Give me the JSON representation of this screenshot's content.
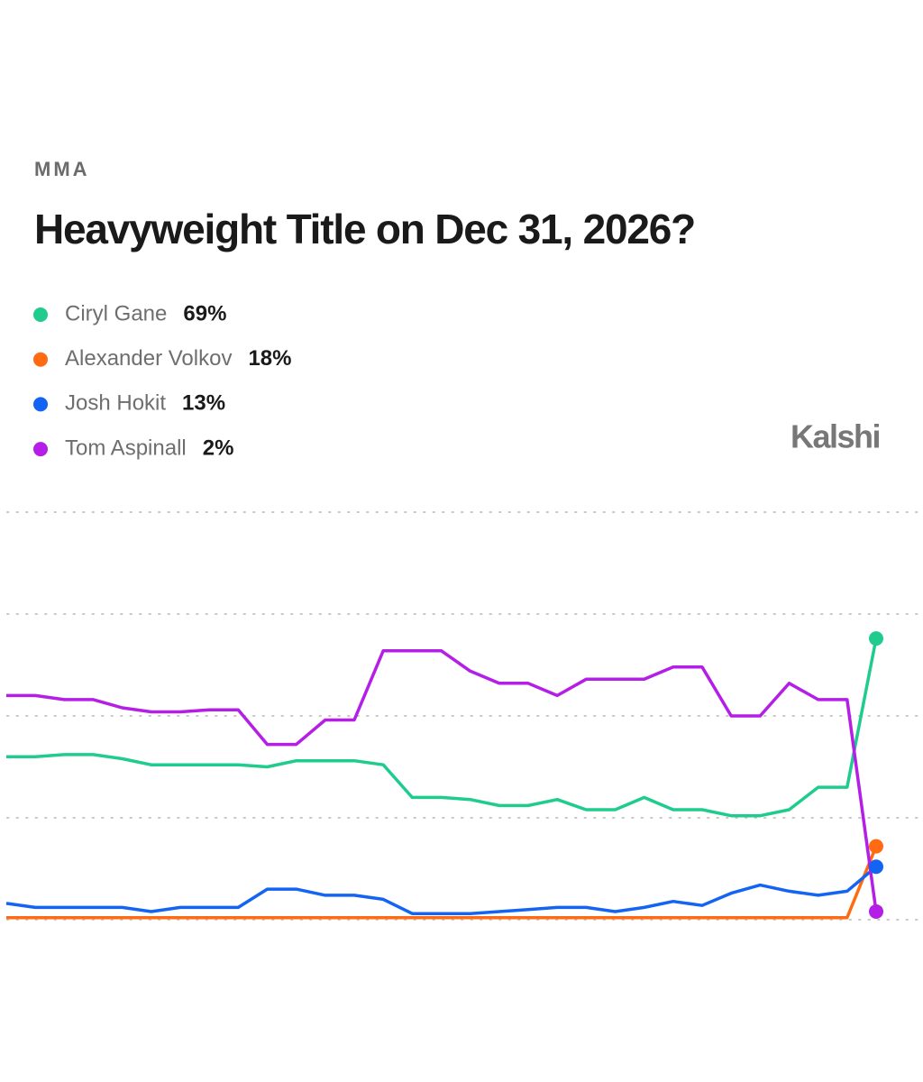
{
  "chart_data": {
    "type": "line",
    "kicker": "MMA",
    "title": "Heavyweight Title on Dec 31, 2026?",
    "logo": "Kalshi",
    "ylim": [
      0,
      100
    ],
    "yticks": [
      0,
      25,
      50,
      75,
      100
    ],
    "grid": true,
    "series": [
      {
        "name": "Ciryl Gane",
        "color": "#1fcc8e",
        "current": {
          "value": 69,
          "label": "69%"
        },
        "values": [
          40,
          40,
          40.5,
          40.5,
          39.5,
          38,
          38,
          38,
          38,
          37.5,
          39,
          39,
          39,
          38,
          30,
          30,
          29.5,
          28,
          28,
          29.5,
          27,
          27,
          30,
          27,
          27,
          25.5,
          25.5,
          27,
          32.5,
          32.5,
          69
        ]
      },
      {
        "name": "Alexander Volkov",
        "color": "#ff6a13",
        "current": {
          "value": 18,
          "label": "18%"
        },
        "values": [
          0.5,
          0.5,
          0.5,
          0.5,
          0.5,
          0.5,
          0.5,
          0.5,
          0.5,
          0.5,
          0.5,
          0.5,
          0.5,
          0.5,
          0.5,
          0.5,
          0.5,
          0.5,
          0.5,
          0.5,
          0.5,
          0.5,
          0.5,
          0.5,
          0.5,
          0.5,
          0.5,
          0.5,
          0.5,
          0.5,
          18
        ]
      },
      {
        "name": "Josh Hokit",
        "color": "#1464f4",
        "current": {
          "value": 13,
          "label": "13%"
        },
        "values": [
          4,
          3,
          3,
          3,
          3,
          2,
          3,
          3,
          3,
          7.5,
          7.5,
          6,
          6,
          5,
          1.5,
          1.5,
          1.5,
          2,
          2.5,
          3,
          3,
          2,
          3,
          4.5,
          3.5,
          6.5,
          8.5,
          7,
          6,
          7,
          13
        ]
      },
      {
        "name": "Tom Aspinall",
        "color": "#b41ee6",
        "current": {
          "value": 2,
          "label": "2%"
        },
        "values": [
          55,
          55,
          54,
          54,
          52,
          51,
          51,
          51.5,
          51.5,
          43,
          43,
          49,
          49,
          66,
          66,
          66,
          61,
          58,
          58,
          55,
          59,
          59,
          59,
          62,
          62,
          50,
          50,
          58,
          54,
          54,
          2
        ]
      }
    ]
  }
}
